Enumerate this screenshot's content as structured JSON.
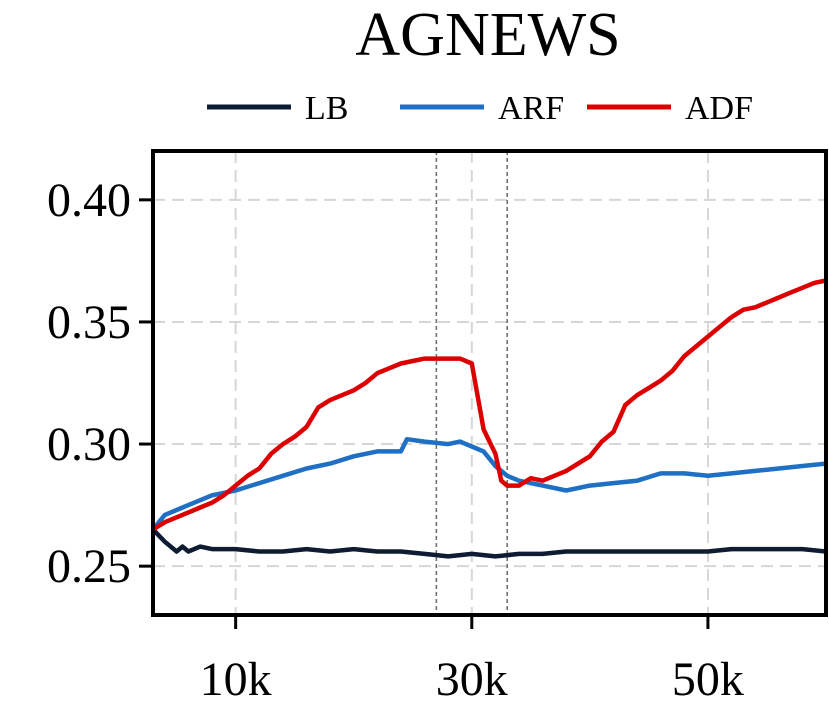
{
  "chart_data": {
    "type": "line",
    "title": "AGNEWS",
    "xlabel": "",
    "ylabel": "",
    "xlim": [
      3000,
      60000
    ],
    "ylim": [
      0.23,
      0.42
    ],
    "x_ticks": [
      10000,
      30000,
      50000
    ],
    "x_tick_labels": [
      "10k",
      "30k",
      "50k"
    ],
    "y_ticks": [
      0.25,
      0.3,
      0.35,
      0.4
    ],
    "y_tick_labels": [
      "0.25",
      "0.30",
      "0.35",
      "0.40"
    ],
    "grid": true,
    "legend_position": "top",
    "vertical_markers": [
      27000,
      33000
    ],
    "series": [
      {
        "name": "LB",
        "color": "#0d1b33",
        "x": [
          3000,
          4000,
          5000,
          5500,
          6000,
          7000,
          8000,
          10000,
          12000,
          14000,
          16000,
          18000,
          20000,
          22000,
          24000,
          26000,
          28000,
          30000,
          32000,
          34000,
          36000,
          38000,
          40000,
          42000,
          44000,
          46000,
          48000,
          50000,
          52000,
          54000,
          56000,
          58000,
          60000
        ],
        "values": [
          0.265,
          0.26,
          0.256,
          0.258,
          0.256,
          0.258,
          0.257,
          0.257,
          0.256,
          0.256,
          0.257,
          0.256,
          0.257,
          0.256,
          0.256,
          0.255,
          0.254,
          0.255,
          0.254,
          0.255,
          0.255,
          0.256,
          0.256,
          0.256,
          0.256,
          0.256,
          0.256,
          0.256,
          0.257,
          0.257,
          0.257,
          0.257,
          0.256
        ]
      },
      {
        "name": "ARF",
        "color": "#1f6fc5",
        "x": [
          3000,
          4000,
          5000,
          6000,
          7000,
          8000,
          10000,
          12000,
          14000,
          16000,
          18000,
          20000,
          22000,
          24000,
          24500,
          26000,
          28000,
          29000,
          30000,
          31000,
          32000,
          33000,
          34000,
          36000,
          38000,
          40000,
          42000,
          44000,
          46000,
          48000,
          50000,
          52000,
          54000,
          56000,
          58000,
          60000
        ],
        "values": [
          0.265,
          0.271,
          0.273,
          0.275,
          0.277,
          0.279,
          0.281,
          0.284,
          0.287,
          0.29,
          0.292,
          0.295,
          0.297,
          0.297,
          0.302,
          0.301,
          0.3,
          0.301,
          0.299,
          0.297,
          0.291,
          0.287,
          0.285,
          0.283,
          0.281,
          0.283,
          0.284,
          0.285,
          0.288,
          0.288,
          0.287,
          0.288,
          0.289,
          0.29,
          0.291,
          0.292
        ]
      },
      {
        "name": "ADF",
        "color": "#dd0000",
        "x": [
          3000,
          4000,
          5000,
          6000,
          7000,
          8000,
          9000,
          10000,
          11000,
          12000,
          13000,
          14000,
          15000,
          16000,
          17000,
          18000,
          19000,
          20000,
          21000,
          22000,
          23000,
          24000,
          25000,
          26000,
          27000,
          28000,
          29000,
          30000,
          31000,
          32000,
          32500,
          33000,
          34000,
          35000,
          36000,
          37000,
          38000,
          39000,
          40000,
          41000,
          42000,
          43000,
          44000,
          45000,
          46000,
          47000,
          48000,
          49000,
          50000,
          51000,
          52000,
          53000,
          54000,
          55000,
          56000,
          57000,
          58000,
          59000,
          60000
        ],
        "values": [
          0.265,
          0.268,
          0.27,
          0.272,
          0.274,
          0.276,
          0.279,
          0.283,
          0.287,
          0.29,
          0.296,
          0.3,
          0.303,
          0.307,
          0.315,
          0.318,
          0.32,
          0.322,
          0.325,
          0.329,
          0.331,
          0.333,
          0.334,
          0.335,
          0.335,
          0.335,
          0.335,
          0.333,
          0.306,
          0.296,
          0.285,
          0.283,
          0.283,
          0.286,
          0.285,
          0.287,
          0.289,
          0.292,
          0.295,
          0.301,
          0.305,
          0.316,
          0.32,
          0.323,
          0.326,
          0.33,
          0.336,
          0.34,
          0.344,
          0.348,
          0.352,
          0.355,
          0.356,
          0.358,
          0.36,
          0.362,
          0.364,
          0.366,
          0.367
        ]
      }
    ]
  }
}
